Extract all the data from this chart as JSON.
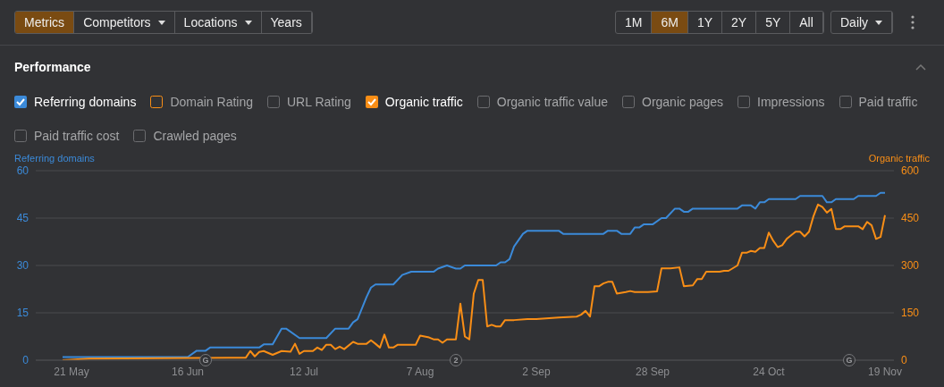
{
  "chart_data": {
    "type": "line",
    "title": "Performance",
    "ylabel": "Referring domains",
    "y2label": "Organic traffic",
    "annotations": [
      "Metrics",
      "Competitors",
      "Locations",
      "Years",
      "1M",
      "6M",
      "1Y",
      "2Y",
      "5Y",
      "All",
      "Daily",
      "Domain Rating",
      "URL Rating",
      "Organic traffic value",
      "Organic pages",
      "Impressions",
      "Paid traffic",
      "Paid traffic cost",
      "Crawled pages",
      {
        "text": "G",
        "x": "--06-20"
      },
      {
        "text": "2",
        "x": "--08-15"
      },
      {
        "text": "G",
        "x": "--11-11"
      }
    ],
    "xlim": [
      "--05-13",
      "--11-21"
    ],
    "xticks": [
      {
        "value": "--05-21",
        "label": "21 May"
      },
      {
        "value": "--06-16",
        "label": "16 Jun"
      },
      {
        "value": "--07-12",
        "label": "12 Jul"
      },
      {
        "value": "--08-07",
        "label": "7 Aug"
      },
      {
        "value": "--09-02",
        "label": "2 Sep"
      },
      {
        "value": "--09-28",
        "label": "28 Sep"
      },
      {
        "value": "--10-24",
        "label": "24 Oct"
      },
      {
        "value": "--11-19",
        "label": "19 Nov"
      }
    ],
    "ylim": [
      0,
      60
    ],
    "yticks": [
      0,
      15,
      30,
      45,
      60
    ],
    "y2lim": [
      0,
      600
    ],
    "y2ticks": [
      0,
      150,
      300,
      450,
      600
    ],
    "grid": "y",
    "legend": "top left",
    "marker": "none",
    "line_style": "solid",
    "series": [
      {
        "name": "Referring domains",
        "color": "#3b8ad9",
        "x": [
          "--05-19",
          "--06-16",
          "--06-18",
          "--06-20",
          "--06-21",
          "--07-02",
          "--07-03",
          "--07-05",
          "--07-07",
          "--07-08",
          "--07-11",
          "--07-17",
          "--07-19",
          "--07-22",
          "--07-23",
          "--07-24",
          "--07-26",
          "--07-27",
          "--07-28",
          "--08-01",
          "--08-03",
          "--08-05",
          "--08-10",
          "--08-11",
          "--08-13",
          "--08-15",
          "--08-16",
          "--08-17",
          "--08-24",
          "--08-25",
          "--08-26",
          "--08-27",
          "--08-28",
          "--08-30",
          "--08-31",
          "--09-07",
          "--09-08",
          "--09-17",
          "--09-18",
          "--09-20",
          "--09-21",
          "--09-23",
          "--09-24",
          "--09-25",
          "--09-26",
          "--09-28",
          "--09-30",
          "--10-01",
          "--10-03",
          "--10-04",
          "--10-05",
          "--10-06",
          "--10-07",
          "--10-17",
          "--10-18",
          "--10-20",
          "--10-21",
          "--10-22",
          "--10-23",
          "--10-24",
          "--10-30",
          "--10-31",
          "--11-05",
          "--11-06",
          "--11-07",
          "--11-08",
          "--11-12",
          "--11-13",
          "--11-17",
          "--11-18",
          "--11-19"
        ],
        "values": [
          1,
          1,
          3,
          3,
          4,
          4,
          5,
          5,
          10,
          10,
          7,
          7,
          10,
          10,
          12,
          13,
          20,
          23,
          24,
          24,
          27,
          28,
          28,
          29,
          30,
          29,
          29,
          30,
          30,
          31,
          31,
          32,
          36,
          40,
          41,
          41,
          40,
          40,
          41,
          41,
          40,
          40,
          42,
          42,
          43,
          43,
          45,
          45,
          48,
          48,
          47,
          47,
          48,
          48,
          49,
          49,
          48,
          50,
          50,
          51,
          51,
          52,
          52,
          50,
          50,
          51,
          51,
          52,
          52,
          53,
          53
        ]
      },
      {
        "name": "Organic traffic",
        "color": "#f98e16",
        "axis": "y2",
        "x": [
          "--05-19",
          "--05-25",
          "--06-29",
          "--06-30",
          "--07-01",
          "--07-02",
          "--07-03",
          "--07-05",
          "--07-07",
          "--07-09",
          "--07-10",
          "--07-11",
          "--07-12",
          "--07-14",
          "--07-15",
          "--07-16",
          "--07-17",
          "--07-18",
          "--07-19",
          "--07-20",
          "--07-21",
          "--07-23",
          "--07-24",
          "--07-26",
          "--07-27",
          "--07-28",
          "--07-29",
          "--07-30",
          "--07-31",
          "--08-01",
          "--08-02",
          "--08-06",
          "--08-07",
          "--08-09",
          "--08-10",
          "--08-11",
          "--08-12",
          "--08-13",
          "--08-15",
          "--08-16",
          "--08-17",
          "--08-18",
          "--08-19",
          "--08-20",
          "--08-21",
          "--08-22",
          "--08-23",
          "--08-24",
          "--08-25",
          "--08-26",
          "--08-28",
          "--08-31",
          "--09-02",
          "--09-07",
          "--09-11",
          "--09-12",
          "--09-13",
          "--09-14",
          "--09-15",
          "--09-16",
          "--09-17",
          "--09-18",
          "--09-19",
          "--09-20",
          "--09-22",
          "--09-23",
          "--09-24",
          "--09-27",
          "--09-29",
          "--09-30",
          "--10-02",
          "--10-04",
          "--10-05",
          "--10-07",
          "--10-08",
          "--10-09",
          "--10-10",
          "--10-13",
          "--10-14",
          "--10-15",
          "--10-17",
          "--10-18",
          "--10-19",
          "--10-20",
          "--10-21",
          "--10-22",
          "--10-23",
          "--10-24",
          "--10-25",
          "--10-26",
          "--10-27",
          "--10-28",
          "--10-30",
          "--10-31",
          "--11-01",
          "--11-02",
          "--11-03",
          "--11-04",
          "--11-05",
          "--11-06",
          "--11-07",
          "--11-08",
          "--11-09",
          "--11-10",
          "--11-13",
          "--11-14",
          "--11-15",
          "--11-16",
          "--11-17",
          "--11-18",
          "--11-19"
        ],
        "values": [
          0,
          5,
          8,
          29,
          12,
          26,
          29,
          17,
          29,
          27,
          52,
          20,
          29,
          29,
          40,
          32,
          49,
          49,
          35,
          43,
          35,
          58,
          52,
          52,
          63,
          52,
          40,
          81,
          40,
          40,
          49,
          49,
          78,
          72,
          66,
          66,
          55,
          66,
          66,
          179,
          75,
          66,
          211,
          254,
          254,
          107,
          112,
          107,
          107,
          127,
          127,
          130,
          130,
          135,
          138,
          144,
          156,
          138,
          234,
          234,
          243,
          248,
          248,
          211,
          216,
          219,
          216,
          216,
          218,
          291,
          291,
          294,
          234,
          237,
          257,
          257,
          280,
          280,
          283,
          283,
          300,
          340,
          340,
          346,
          343,
          355,
          355,
          404,
          378,
          358,
          364,
          384,
          407,
          407,
          392,
          407,
          456,
          493,
          485,
          467,
          479,
          415,
          415,
          424,
          424,
          415,
          438,
          427,
          384,
          390,
          459
        ]
      }
    ]
  }
}
